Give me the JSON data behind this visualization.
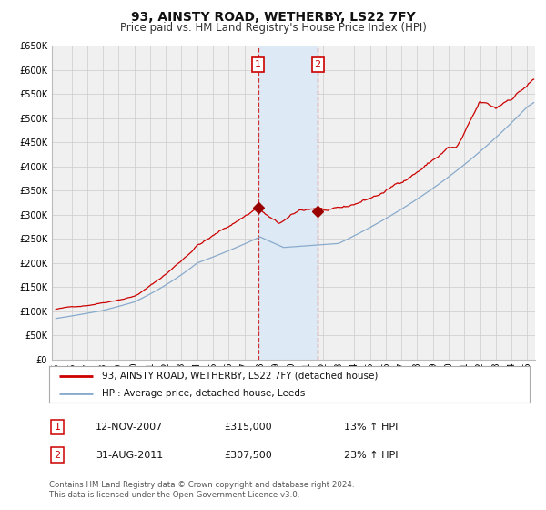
{
  "title": "93, AINSTY ROAD, WETHERBY, LS22 7FY",
  "subtitle": "Price paid vs. HM Land Registry's House Price Index (HPI)",
  "ylim": [
    0,
    650000
  ],
  "yticks": [
    0,
    50000,
    100000,
    150000,
    200000,
    250000,
    300000,
    350000,
    400000,
    450000,
    500000,
    550000,
    600000,
    650000
  ],
  "xlim_start": 1994.75,
  "xlim_end": 2025.5,
  "background_color": "#ffffff",
  "plot_bg_color": "#f0f0f0",
  "grid_color": "#cccccc",
  "red_line_color": "#cc0000",
  "blue_line_color": "#88aacc",
  "marker1_date": 2007.87,
  "marker1_value": 315000,
  "marker2_date": 2011.67,
  "marker2_value": 307500,
  "vline1_date": 2007.87,
  "vline2_date": 2011.67,
  "shade_color": "#ddeaf5",
  "legend_label_red": "93, AINSTY ROAD, WETHERBY, LS22 7FY (detached house)",
  "legend_label_blue": "HPI: Average price, detached house, Leeds",
  "table_row1": [
    "1",
    "12-NOV-2007",
    "£315,000",
    "13% ↑ HPI"
  ],
  "table_row2": [
    "2",
    "31-AUG-2011",
    "£307,500",
    "23% ↑ HPI"
  ],
  "footnote1": "Contains HM Land Registry data © Crown copyright and database right 2024.",
  "footnote2": "This data is licensed under the Open Government Licence v3.0.",
  "title_fontsize": 10,
  "subtitle_fontsize": 8.5,
  "tick_fontsize": 7,
  "legend_fontsize": 7.5,
  "table_fontsize": 8
}
